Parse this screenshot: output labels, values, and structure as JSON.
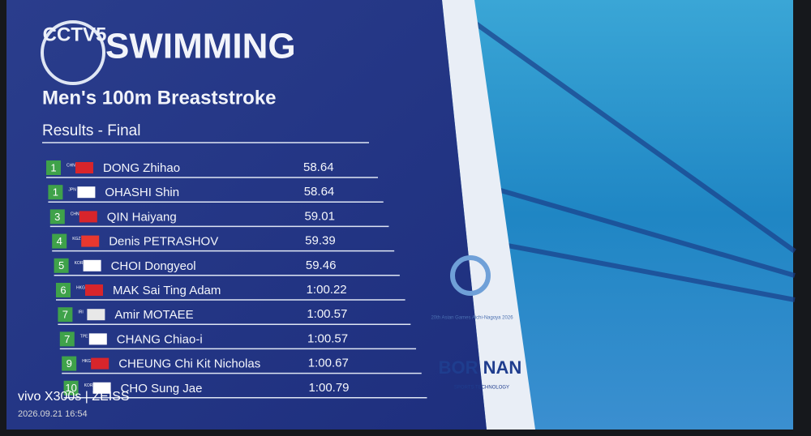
{
  "header": {
    "channel": "CCTV5",
    "sport": "SWIMMING",
    "event": "Men's 100m Breaststroke",
    "stage": "Results - Final"
  },
  "table": {
    "rows": [
      [
        "1",
        "CHN",
        "DONG Zhihao",
        "58.64"
      ],
      [
        "1",
        "JPN",
        "OHASHI Shin",
        "58.64"
      ],
      [
        "3",
        "CHN",
        "QIN Haiyang",
        "59.01"
      ],
      [
        "4",
        "KGZ",
        "Denis PETRASHOV",
        "59.39"
      ],
      [
        "5",
        "KOR",
        "CHOI Dongyeol",
        "59.46"
      ],
      [
        "6",
        "HKG",
        "MAK Sai Ting Adam",
        "1:00.22"
      ],
      [
        "7",
        "IRI",
        "Amir MOTAEE",
        "1:00.57"
      ],
      [
        "7",
        "TPE",
        "CHANG Chiao-i",
        "1:00.57"
      ],
      [
        "9",
        "HKG",
        "CHEUNG Chi Kit Nicholas",
        "1:00.67"
      ],
      [
        "10",
        "KOR",
        "CHO Sung Jae",
        "1:00.79"
      ]
    ]
  },
  "sponsors": {
    "games": "20th Asian Games Aichi-Nagoya 2026",
    "brand": "BOR NAN",
    "brand_sub": "SPORTS TECHNOLOGY"
  },
  "watermark": {
    "device": "vivo X300s | ZEISS",
    "timestamp": "2026.09.21 16:54"
  }
}
